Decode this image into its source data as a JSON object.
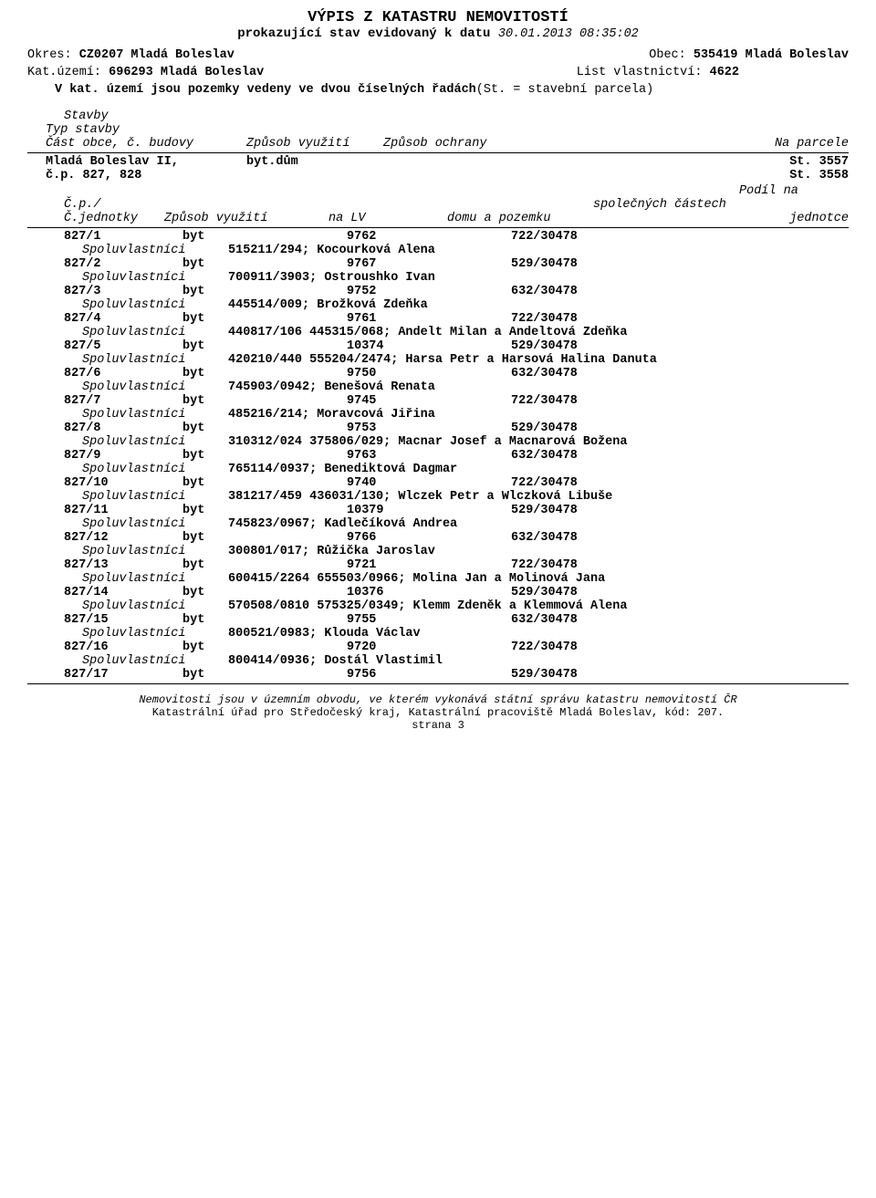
{
  "header": {
    "title1": "VÝPIS Z KATASTRU NEMOVITOSTÍ",
    "title2": "prokazující stav evidovaný k datu ",
    "datetime": "30.01.2013 08:35:02",
    "okres_label": "Okres: ",
    "okres_value": "CZ0207 Mladá Boleslav",
    "obec_label": "Obec: ",
    "obec_value": "535419 Mladá Boleslav",
    "kat_label": "Kat.území: ",
    "kat_value": "696293 Mladá Boleslav",
    "lv_label": "List vlastnictví: ",
    "lv_value": "4622",
    "kat_note1": "V kat. území jsou pozemky vedeny ve dvou číselných řadách  ",
    "kat_note2": "(St. = stavební parcela)"
  },
  "sections": {
    "stavby": "Stavby",
    "typ_stavby": "Typ stavby",
    "cast_obce": "Část obce, č. budovy",
    "zpusob_vyuziti": "Způsob využití",
    "zpusob_ochrany": "Způsob ochrany",
    "na_parcele": "Na parcele",
    "building_part": "Mladá Boleslav II,",
    "building_num": "č.p. 827, 828",
    "building_use": "byt.dům",
    "parcela1": "St. 3557",
    "parcela2": "St. 3558",
    "podil_na": "Podíl na",
    "cp": "Č.p./",
    "cjednotky": "Č.jednotky",
    "zpusob_vyuziti2": "Způsob využití",
    "na_lv": "na LV",
    "spolec": "společných částech",
    "domu": "domu a pozemku",
    "jednotce": "jednotce",
    "spoluvlastnici": "Spoluvlastníci"
  },
  "units": [
    {
      "id": "827/1",
      "type": "byt",
      "lv": "9762",
      "share": "722/30478",
      "owners": "515211/294; Kocourková Alena"
    },
    {
      "id": "827/2",
      "type": "byt",
      "lv": "9767",
      "share": "529/30478",
      "owners": "700911/3903; Ostroushko Ivan"
    },
    {
      "id": "827/3",
      "type": "byt",
      "lv": "9752",
      "share": "632/30478",
      "owners": "445514/009; Brožková Zdeňka"
    },
    {
      "id": "827/4",
      "type": "byt",
      "lv": "9761",
      "share": "722/30478",
      "owners": "440817/106  445315/068; Andelt Milan a Andeltová Zdeňka"
    },
    {
      "id": "827/5",
      "type": "byt",
      "lv": "10374",
      "share": "529/30478",
      "owners": "420210/440  555204/2474; Harsa Petr a Harsová Halina Danuta"
    },
    {
      "id": "827/6",
      "type": "byt",
      "lv": "9750",
      "share": "632/30478",
      "owners": "745903/0942; Benešová Renata"
    },
    {
      "id": "827/7",
      "type": "byt",
      "lv": "9745",
      "share": "722/30478",
      "owners": "485216/214; Moravcová Jiřina"
    },
    {
      "id": "827/8",
      "type": "byt",
      "lv": "9753",
      "share": "529/30478",
      "owners": "310312/024  375806/029; Macnar Josef a Macnarová Božena"
    },
    {
      "id": "827/9",
      "type": "byt",
      "lv": "9763",
      "share": "632/30478",
      "owners": "765114/0937; Benediktová Dagmar"
    },
    {
      "id": "827/10",
      "type": "byt",
      "lv": "9740",
      "share": "722/30478",
      "owners": "381217/459  436031/130; Wlczek Petr a Wlczková Libuše"
    },
    {
      "id": "827/11",
      "type": "byt",
      "lv": "10379",
      "share": "529/30478",
      "owners": "745823/0967; Kadlečíková Andrea"
    },
    {
      "id": "827/12",
      "type": "byt",
      "lv": "9766",
      "share": "632/30478",
      "owners": "300801/017; Růžička Jaroslav"
    },
    {
      "id": "827/13",
      "type": "byt",
      "lv": "9721",
      "share": "722/30478",
      "owners": "600415/2264  655503/0966; Molina Jan a Molinová Jana"
    },
    {
      "id": "827/14",
      "type": "byt",
      "lv": "10376",
      "share": "529/30478",
      "owners": "570508/0810  575325/0349; Klemm Zdeněk a Klemmová Alena"
    },
    {
      "id": "827/15",
      "type": "byt",
      "lv": "9755",
      "share": "632/30478",
      "owners": "800521/0983; Klouda Václav"
    },
    {
      "id": "827/16",
      "type": "byt",
      "lv": "9720",
      "share": "722/30478",
      "owners": "800414/0936; Dostál Vlastimil"
    },
    {
      "id": "827/17",
      "type": "byt",
      "lv": "9756",
      "share": "529/30478",
      "owners": ""
    }
  ],
  "footer": {
    "line1": "Nemovitosti jsou v územním obvodu, ve kterém vykonává státní správu katastru nemovitostí ČR",
    "line2": "Katastrální úřad pro Středočeský kraj, Katastrální pracoviště Mladá Boleslav, kód: 207.",
    "line3": "strana 3"
  }
}
